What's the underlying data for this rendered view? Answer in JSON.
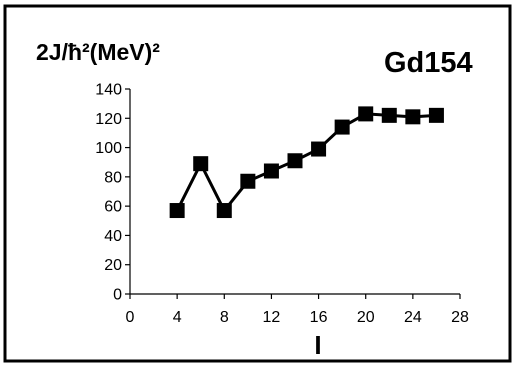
{
  "chart_data": {
    "type": "line",
    "title": "Gd154",
    "ylabel": "2J/ħ²(MeV)²",
    "xlabel": "I",
    "xlim": [
      0,
      28
    ],
    "ylim": [
      0,
      140
    ],
    "x_ticks": [
      0,
      4,
      8,
      12,
      16,
      20,
      24,
      28
    ],
    "y_ticks": [
      0,
      20,
      40,
      60,
      80,
      100,
      120,
      140
    ],
    "grid": false,
    "marker": "square",
    "line_color": "#000000",
    "series": [
      {
        "x": [
          4,
          6,
          8,
          10,
          12,
          14,
          16,
          18,
          20,
          22,
          24,
          26
        ],
        "y": [
          57,
          89,
          57,
          77,
          84,
          91,
          99,
          114,
          123,
          122,
          121,
          122
        ]
      }
    ]
  }
}
